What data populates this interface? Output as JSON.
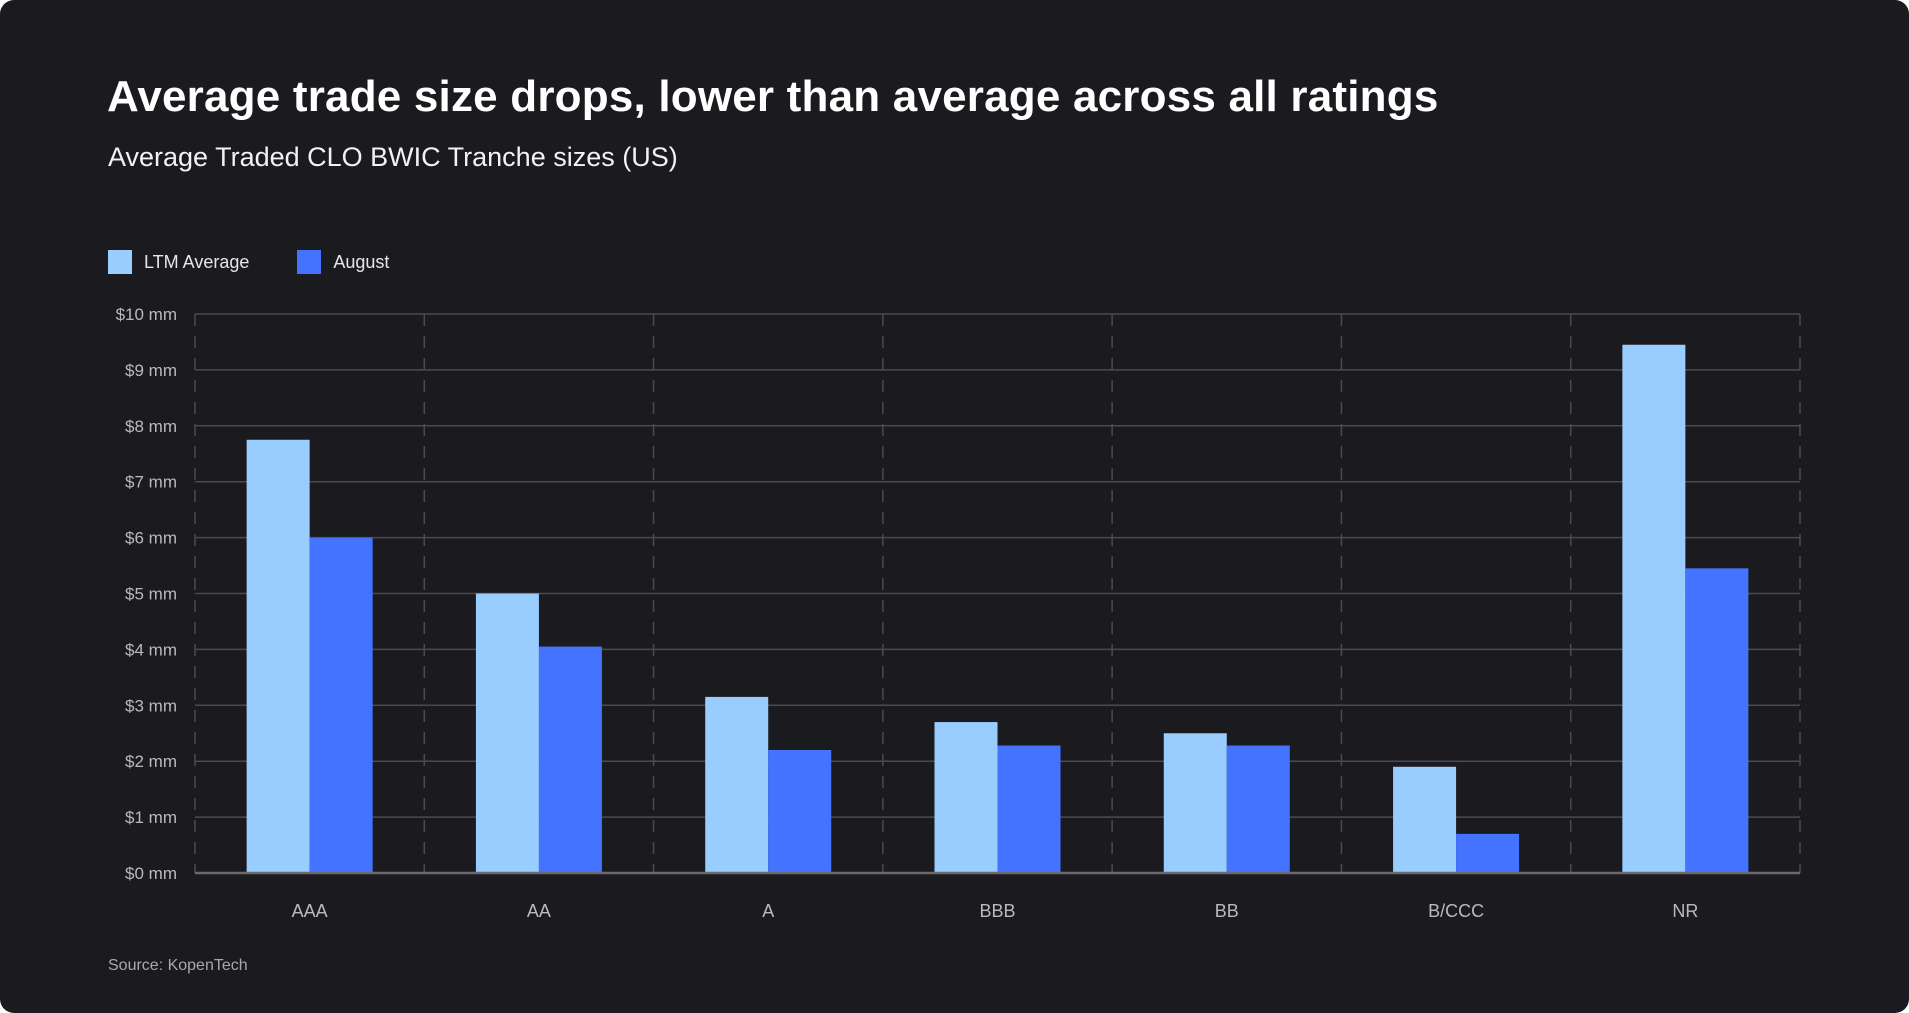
{
  "header": {
    "title": "Average trade size drops, lower than average across all ratings",
    "subtitle": "Average Traded CLO BWIC Tranche sizes (US)"
  },
  "footer": {
    "source": "Source: KopenTech"
  },
  "colors": {
    "background": "#1b1b1f",
    "ltm_average": "#99ccff",
    "august": "#4474ff",
    "grid": "#4a4a50"
  },
  "chart_data": {
    "type": "bar",
    "title": "Average trade size drops, lower than average across all ratings",
    "subtitle": "Average Traded CLO BWIC Tranche sizes (US)",
    "xlabel": "",
    "ylabel": "",
    "categories": [
      "AAA",
      "AA",
      "A",
      "BBB",
      "BB",
      "B/CCC",
      "NR"
    ],
    "series": [
      {
        "name": "LTM Average",
        "color": "#99ccff",
        "values": [
          7.75,
          5.0,
          3.15,
          2.7,
          2.5,
          1.9,
          9.45
        ]
      },
      {
        "name": "August",
        "color": "#4474ff",
        "values": [
          6.0,
          4.05,
          2.2,
          2.28,
          2.28,
          0.7,
          5.45
        ]
      }
    ],
    "ylim": [
      0,
      10
    ],
    "yticks": [
      0,
      1,
      2,
      3,
      4,
      5,
      6,
      7,
      8,
      9,
      10
    ],
    "ytick_labels": [
      "$0 mm",
      "$1 mm",
      "$2 mm",
      "$3 mm",
      "$4 mm",
      "$5 mm",
      "$6 mm",
      "$7 mm",
      "$8 mm",
      "$9 mm",
      "$10 mm"
    ],
    "legend_position": "top-left",
    "grid": true
  }
}
